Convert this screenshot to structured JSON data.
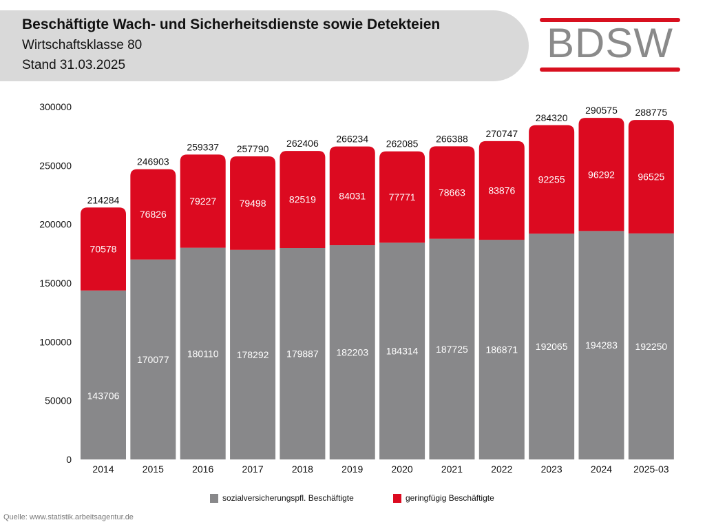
{
  "header": {
    "title": "Beschäftigte Wach- und Sicherheitsdienste sowie Detekteien",
    "subtitle": "Wirtschaftsklasse 80",
    "stand": "Stand 31.03.2025"
  },
  "logo": {
    "text": "BDSW",
    "bar_color": "#d8101f",
    "text_color": "#8a8a8a"
  },
  "colors": {
    "series_a": "#88888a",
    "series_b": "#dc0a20"
  },
  "legend": [
    {
      "label": "sozialversicherungspfl. Beschäftigte"
    },
    {
      "label": "geringfügig Beschäftigte"
    }
  ],
  "source": "Quelle: www.statistik.arbeitsagentur.de",
  "chart_data": {
    "type": "bar",
    "stacked": true,
    "title": "Beschäftigte Wach- und Sicherheitsdienste sowie Detekteien",
    "xlabel": "",
    "ylabel": "",
    "ylim": [
      0,
      300000
    ],
    "yticks": [
      0,
      50000,
      100000,
      150000,
      200000,
      250000,
      300000
    ],
    "grid": false,
    "legend_position": "bottom",
    "categories": [
      "2014",
      "2015",
      "2016",
      "2017",
      "2018",
      "2019",
      "2020",
      "2021",
      "2022",
      "2023",
      "2024",
      "2025-03"
    ],
    "series": [
      {
        "name": "sozialversicherungspfl. Beschäftigte",
        "values": [
          143706,
          170077,
          180110,
          178292,
          179887,
          182203,
          184314,
          187725,
          186871,
          192065,
          194283,
          192250
        ]
      },
      {
        "name": "geringfügig Beschäftigte",
        "values": [
          70578,
          76826,
          79227,
          79498,
          82519,
          84031,
          77771,
          78663,
          83876,
          92255,
          96292,
          96525
        ]
      }
    ],
    "totals": [
      214284,
      246903,
      259337,
      257790,
      262406,
      266234,
      262085,
      266388,
      270747,
      284320,
      290575,
      288775
    ]
  }
}
